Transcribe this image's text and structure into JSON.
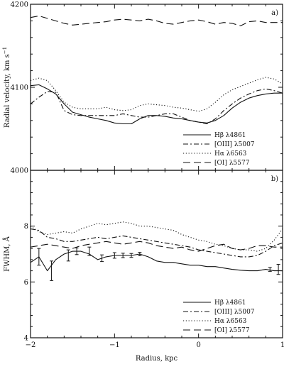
{
  "chart_data": [
    {
      "type": "line",
      "panel_label": "a)",
      "xlabel": "",
      "ylabel": "Radial velocity, km s",
      "ylabel_exponent": "−1",
      "xlim": [
        -2,
        1
      ],
      "ylim": [
        4000,
        4200
      ],
      "xticks": [
        -2,
        -1,
        0,
        1
      ],
      "xtick_labels": [
        "",
        "",
        "",
        ""
      ],
      "yticks": [
        4000,
        4100,
        4200
      ],
      "ytick_labels": [
        "4000",
        "4100",
        "4200"
      ],
      "grid": false,
      "legend_position": "bottom-right",
      "series": [
        {
          "name": "Hβ λ4861",
          "dash": "solid",
          "x": [
            -2.0,
            -1.9,
            -1.8,
            -1.7,
            -1.6,
            -1.5,
            -1.4,
            -1.3,
            -1.2,
            -1.1,
            -1.0,
            -0.9,
            -0.8,
            -0.7,
            -0.6,
            -0.5,
            -0.4,
            -0.3,
            -0.2,
            -0.1,
            0.0,
            0.1,
            0.2,
            0.3,
            0.4,
            0.5,
            0.6,
            0.7,
            0.8,
            0.9,
            1.0
          ],
          "y": [
            4102,
            4103,
            4098,
            4092,
            4080,
            4070,
            4067,
            4064,
            4062,
            4060,
            4057,
            4056,
            4056,
            4062,
            4066,
            4066,
            4065,
            4063,
            4062,
            4060,
            4058,
            4057,
            4060,
            4066,
            4075,
            4082,
            4087,
            4090,
            4092,
            4093,
            4093
          ]
        },
        {
          "name": "[OIII] λ5007",
          "dash": "dashdot",
          "x": [
            -2.0,
            -1.9,
            -1.8,
            -1.7,
            -1.6,
            -1.5,
            -1.4,
            -1.3,
            -1.2,
            -1.1,
            -1.0,
            -0.9,
            -0.8,
            -0.7,
            -0.6,
            -0.5,
            -0.4,
            -0.3,
            -0.2,
            -0.1,
            0.0,
            0.1,
            0.2,
            0.3,
            0.4,
            0.5,
            0.6,
            0.7,
            0.8,
            0.9,
            1.0
          ],
          "y": [
            4080,
            4088,
            4095,
            4094,
            4072,
            4067,
            4066,
            4066,
            4066,
            4066,
            4066,
            4068,
            4066,
            4064,
            4064,
            4066,
            4068,
            4068,
            4064,
            4060,
            4058,
            4056,
            4062,
            4072,
            4080,
            4087,
            4092,
            4096,
            4098,
            4096,
            4093
          ]
        },
        {
          "name": "Hα λ6563",
          "dash": "dotted",
          "x": [
            -2.0,
            -1.9,
            -1.8,
            -1.7,
            -1.6,
            -1.5,
            -1.4,
            -1.3,
            -1.2,
            -1.1,
            -1.0,
            -0.9,
            -0.8,
            -0.7,
            -0.6,
            -0.5,
            -0.4,
            -0.3,
            -0.2,
            -0.1,
            0.0,
            0.1,
            0.2,
            0.3,
            0.4,
            0.5,
            0.6,
            0.7,
            0.8,
            0.9,
            1.0
          ],
          "y": [
            4108,
            4111,
            4108,
            4096,
            4082,
            4076,
            4074,
            4074,
            4074,
            4076,
            4073,
            4072,
            4073,
            4078,
            4080,
            4079,
            4078,
            4076,
            4075,
            4073,
            4071,
            4074,
            4082,
            4091,
            4097,
            4101,
            4105,
            4109,
            4112,
            4110,
            4104
          ]
        },
        {
          "name": "[OI] λ5577",
          "dash": "dashed",
          "x": [
            -2.0,
            -1.9,
            -1.8,
            -1.7,
            -1.6,
            -1.5,
            -1.4,
            -1.3,
            -1.2,
            -1.1,
            -1.0,
            -0.9,
            -0.8,
            -0.7,
            -0.6,
            -0.5,
            -0.4,
            -0.3,
            -0.2,
            -0.1,
            0.0,
            0.1,
            0.2,
            0.3,
            0.4,
            0.5,
            0.6,
            0.7,
            0.8,
            0.9,
            1.0
          ],
          "y": [
            4184,
            4186,
            4183,
            4180,
            4177,
            4175,
            4176,
            4177,
            4178,
            4179,
            4181,
            4182,
            4181,
            4180,
            4182,
            4180,
            4177,
            4176,
            4178,
            4180,
            4181,
            4179,
            4176,
            4178,
            4177,
            4174,
            4179,
            4180,
            4178,
            4178,
            4178
          ]
        }
      ]
    },
    {
      "type": "line",
      "panel_label": "b)",
      "xlabel": "Radius, kpc",
      "ylabel": "FWHM, Å",
      "xlim": [
        -2,
        1
      ],
      "ylim": [
        4,
        10
      ],
      "xticks": [
        -2,
        -1,
        0,
        1
      ],
      "xtick_labels": [
        "−2",
        "−1",
        "0",
        "1"
      ],
      "yticks": [
        4,
        6,
        8
      ],
      "ytick_labels": [
        "4",
        "6",
        "8"
      ],
      "grid": false,
      "legend_position": "bottom-right",
      "series": [
        {
          "name": "Hβ λ4861",
          "dash": "solid",
          "x": [
            -2.0,
            -1.9,
            -1.8,
            -1.7,
            -1.6,
            -1.5,
            -1.4,
            -1.3,
            -1.2,
            -1.1,
            -1.0,
            -0.9,
            -0.8,
            -0.7,
            -0.6,
            -0.5,
            -0.4,
            -0.3,
            -0.2,
            -0.1,
            0.0,
            0.1,
            0.2,
            0.3,
            0.4,
            0.5,
            0.6,
            0.7,
            0.8,
            0.9,
            1.0
          ],
          "y": [
            6.7,
            6.9,
            6.4,
            6.8,
            7.0,
            7.1,
            7.1,
            7.0,
            6.8,
            6.9,
            6.95,
            6.95,
            6.95,
            7.0,
            6.9,
            6.75,
            6.7,
            6.7,
            6.65,
            6.6,
            6.6,
            6.55,
            6.55,
            6.5,
            6.45,
            6.42,
            6.4,
            6.4,
            6.45,
            6.4,
            6.4
          ],
          "error_bars": [
            {
              "x": -1.9,
              "y": 6.9,
              "err": 0.3
            },
            {
              "x": -1.75,
              "y": 6.4,
              "err": 0.35
            },
            {
              "x": -1.55,
              "y": 6.95,
              "err": 0.2
            },
            {
              "x": -1.45,
              "y": 7.1,
              "err": 0.12
            },
            {
              "x": -1.3,
              "y": 7.1,
              "err": 0.15
            },
            {
              "x": -1.15,
              "y": 6.85,
              "err": 0.12
            },
            {
              "x": -1.0,
              "y": 6.95,
              "err": 0.1
            },
            {
              "x": -0.9,
              "y": 6.95,
              "err": 0.08
            },
            {
              "x": -0.8,
              "y": 6.95,
              "err": 0.07
            },
            {
              "x": -0.7,
              "y": 7.0,
              "err": 0.06
            },
            {
              "x": 0.85,
              "y": 6.45,
              "err": 0.07
            },
            {
              "x": 0.95,
              "y": 6.45,
              "err": 0.18
            }
          ]
        },
        {
          "name": "[OIII] λ5007",
          "dash": "dashdot",
          "x": [
            -2.0,
            -1.9,
            -1.8,
            -1.7,
            -1.6,
            -1.5,
            -1.4,
            -1.3,
            -1.2,
            -1.1,
            -1.0,
            -0.9,
            -0.8,
            -0.7,
            -0.6,
            -0.5,
            -0.4,
            -0.3,
            -0.2,
            -0.1,
            0.0,
            0.1,
            0.2,
            0.3,
            0.4,
            0.5,
            0.6,
            0.7,
            0.8,
            0.9,
            1.0
          ],
          "y": [
            7.9,
            7.85,
            7.6,
            7.55,
            7.45,
            7.45,
            7.5,
            7.55,
            7.6,
            7.55,
            7.6,
            7.65,
            7.6,
            7.55,
            7.5,
            7.45,
            7.4,
            7.35,
            7.3,
            7.25,
            7.15,
            7.1,
            7.05,
            7.0,
            6.95,
            6.9,
            6.9,
            6.95,
            7.1,
            7.3,
            7.4
          ]
        },
        {
          "name": "Hα λ6563",
          "dash": "dotted",
          "x": [
            -2.0,
            -1.9,
            -1.8,
            -1.7,
            -1.6,
            -1.5,
            -1.4,
            -1.3,
            -1.2,
            -1.1,
            -1.0,
            -0.9,
            -0.8,
            -0.7,
            -0.6,
            -0.5,
            -0.4,
            -0.3,
            -0.2,
            -0.1,
            0.0,
            0.1,
            0.2,
            0.3,
            0.4,
            0.5,
            0.6,
            0.7,
            0.8,
            0.9,
            1.0
          ],
          "y": [
            8.0,
            7.8,
            7.7,
            7.75,
            7.8,
            7.75,
            7.9,
            8.0,
            8.1,
            8.05,
            8.1,
            8.15,
            8.1,
            8.0,
            8.0,
            7.95,
            7.9,
            7.85,
            7.7,
            7.6,
            7.5,
            7.45,
            7.35,
            7.3,
            7.2,
            7.15,
            7.15,
            7.1,
            7.2,
            7.5,
            7.9
          ]
        },
        {
          "name": "[OI] λ5577",
          "dash": "dashed",
          "x": [
            -2.0,
            -1.9,
            -1.8,
            -1.7,
            -1.6,
            -1.5,
            -1.4,
            -1.3,
            -1.2,
            -1.1,
            -1.0,
            -0.9,
            -0.8,
            -0.7,
            -0.6,
            -0.5,
            -0.4,
            -0.3,
            -0.2,
            -0.1,
            0.0,
            0.1,
            0.2,
            0.3,
            0.4,
            0.5,
            0.6,
            0.7,
            0.8,
            0.9,
            1.0
          ],
          "y": [
            7.25,
            7.3,
            7.35,
            7.3,
            7.25,
            7.2,
            7.3,
            7.35,
            7.4,
            7.45,
            7.4,
            7.35,
            7.4,
            7.45,
            7.4,
            7.3,
            7.25,
            7.2,
            7.25,
            7.15,
            7.1,
            7.2,
            7.3,
            7.35,
            7.2,
            7.15,
            7.2,
            7.3,
            7.3,
            7.25,
            7.25
          ]
        }
      ]
    }
  ]
}
